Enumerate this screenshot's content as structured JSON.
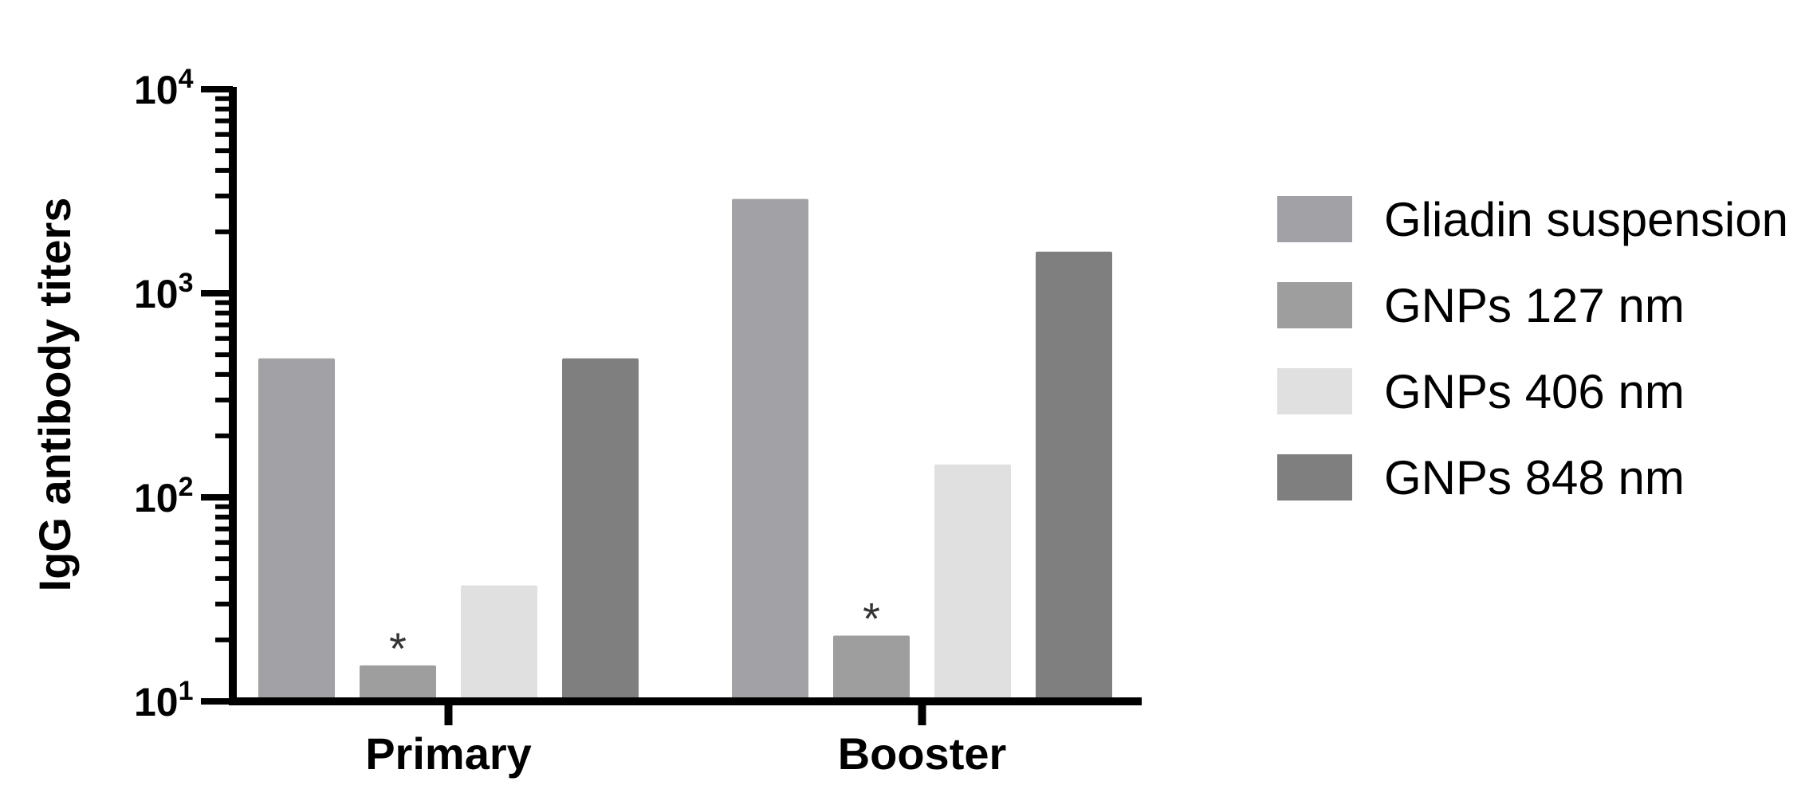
{
  "chart_data": {
    "type": "bar",
    "scale": "log",
    "ylabel": "IgG antibody titers",
    "xlabel": "",
    "ylim": [
      10,
      10000
    ],
    "yticks": [
      {
        "value": 10,
        "base": "10",
        "exp": "1"
      },
      {
        "value": 100,
        "base": "10",
        "exp": "2"
      },
      {
        "value": 1000,
        "base": "10",
        "exp": "3"
      },
      {
        "value": 10000,
        "base": "10",
        "exp": "4"
      }
    ],
    "categories": [
      "Primary",
      "Booster"
    ],
    "series": [
      {
        "name": "Gliadin suspension",
        "color": "#a2a2a6",
        "values": [
          480,
          2900
        ]
      },
      {
        "name": "GNPs 127 nm",
        "color": "#9e9e9e",
        "values": [
          15,
          21
        ]
      },
      {
        "name": "GNPs 406 nm",
        "color": "#e0e0e0",
        "values": [
          37,
          145
        ]
      },
      {
        "name": "GNPs 848 nm",
        "color": "#7f7f7f",
        "values": [
          480,
          1600
        ]
      }
    ],
    "annotations": [
      {
        "category": "Primary",
        "series": "GNPs 127 nm",
        "text": "*"
      },
      {
        "category": "Booster",
        "series": "GNPs 127 nm",
        "text": "*"
      }
    ],
    "legend_position": "right",
    "grid": false
  }
}
